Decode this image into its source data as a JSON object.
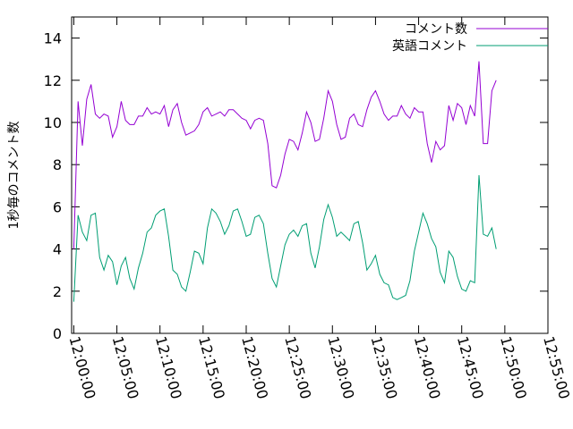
{
  "chart_data": {
    "type": "line",
    "title": "",
    "xlabel": "",
    "ylabel": "1秒毎のコメント数",
    "x_start": "12:00:00",
    "x_step_seconds": 30,
    "xlim": [
      "11:59:45",
      "12:55:00"
    ],
    "ylim": [
      0,
      15
    ],
    "yticks": [
      0,
      2,
      4,
      6,
      8,
      10,
      12,
      14
    ],
    "xticks": [
      "12:00:00",
      "12:05:00",
      "12:10:00",
      "12:15:00",
      "12:20:00",
      "12:25:00",
      "12:30:00",
      "12:35:00",
      "12:40:00",
      "12:45:00",
      "12:50:00",
      "12:55:00"
    ],
    "grid": false,
    "legend_position": "top-right",
    "series": [
      {
        "name": "コメント数",
        "color": "#9400d3",
        "values": [
          4.0,
          11.0,
          8.9,
          11.1,
          11.8,
          10.4,
          10.2,
          10.4,
          10.3,
          9.3,
          9.8,
          11.0,
          10.1,
          9.9,
          9.9,
          10.3,
          10.3,
          10.7,
          10.4,
          10.5,
          10.4,
          10.8,
          9.8,
          10.6,
          10.9,
          10.0,
          9.4,
          9.5,
          9.6,
          9.9,
          10.5,
          10.7,
          10.3,
          10.4,
          10.5,
          10.3,
          10.6,
          10.6,
          10.4,
          10.2,
          10.1,
          9.7,
          10.1,
          10.2,
          10.1,
          9.0,
          7.0,
          6.9,
          7.5,
          8.5,
          9.2,
          9.1,
          8.7,
          9.5,
          10.5,
          10.0,
          9.1,
          9.2,
          10.2,
          11.5,
          11.0,
          9.9,
          9.2,
          9.3,
          10.2,
          10.4,
          9.9,
          9.8,
          10.6,
          11.2,
          11.5,
          11.0,
          10.4,
          10.1,
          10.3,
          10.3,
          10.8,
          10.4,
          10.2,
          10.7,
          10.5,
          10.5,
          9.0,
          8.1,
          9.1,
          8.7,
          8.9,
          10.8,
          10.1,
          10.9,
          10.7,
          9.9,
          10.8,
          10.3,
          12.9,
          9.0,
          9.0,
          11.5,
          12.0
        ]
      },
      {
        "name": "英語コメント",
        "color": "#009e73",
        "values": [
          1.5,
          5.6,
          4.8,
          4.4,
          5.6,
          5.7,
          3.6,
          3.0,
          3.7,
          3.4,
          2.3,
          3.2,
          3.6,
          2.6,
          2.1,
          3.1,
          3.8,
          4.8,
          5.0,
          5.6,
          5.8,
          5.9,
          4.6,
          3.0,
          2.8,
          2.2,
          2.0,
          2.9,
          3.9,
          3.8,
          3.3,
          5.0,
          5.9,
          5.7,
          5.3,
          4.7,
          5.1,
          5.8,
          5.9,
          5.3,
          4.6,
          4.7,
          5.5,
          5.6,
          5.2,
          3.8,
          2.6,
          2.2,
          3.2,
          4.2,
          4.7,
          4.9,
          4.6,
          5.1,
          5.2,
          3.8,
          3.1,
          4.1,
          5.4,
          6.1,
          5.5,
          4.6,
          4.8,
          4.6,
          4.4,
          5.2,
          5.3,
          4.3,
          3.0,
          3.3,
          3.7,
          2.8,
          2.4,
          2.3,
          1.7,
          1.6,
          1.7,
          1.8,
          2.5,
          3.9,
          4.8,
          5.7,
          5.2,
          4.5,
          4.1,
          2.9,
          2.4,
          3.9,
          3.6,
          2.7,
          2.1,
          2.0,
          2.5,
          2.4,
          7.5,
          4.7,
          4.6,
          5.0,
          4.0
        ]
      }
    ]
  }
}
